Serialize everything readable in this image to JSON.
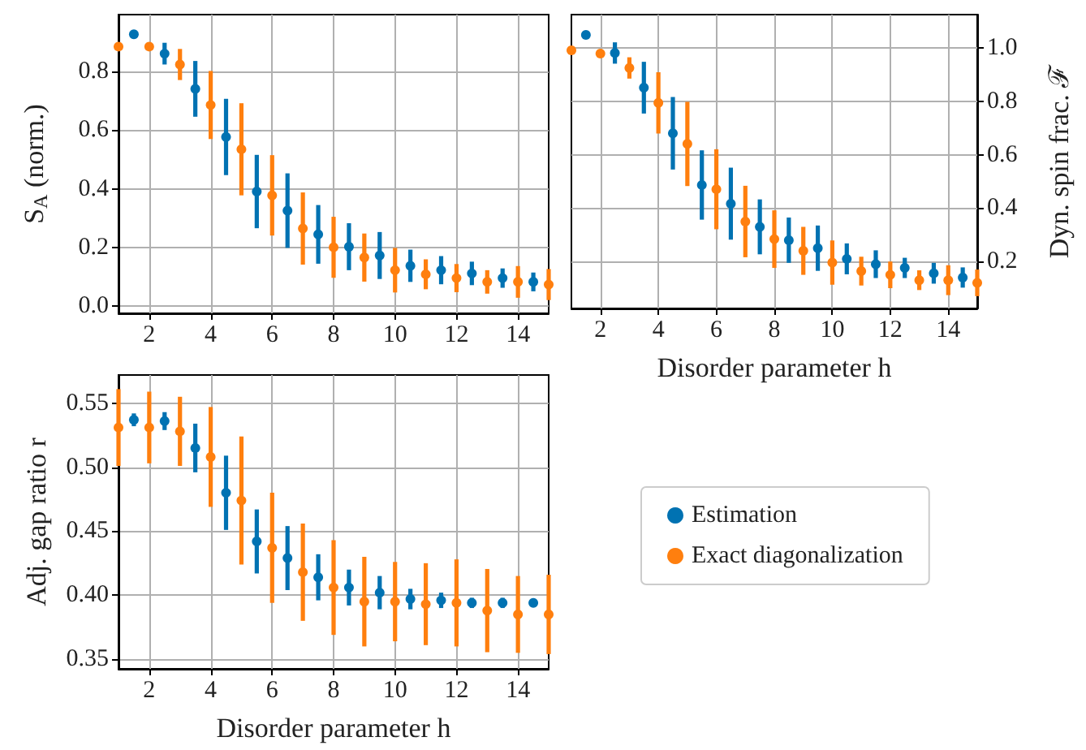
{
  "chart_data": [
    {
      "type": "scatter",
      "ylabel": "S$_{A}$ (norm.)",
      "xlim": [
        1,
        15
      ],
      "xticks": [
        2,
        4,
        6,
        8,
        10,
        12,
        14
      ],
      "ylim": [
        -0.024,
        0.994
      ],
      "yticks": [
        {
          "value": 0,
          "label": "0.0"
        },
        0.2,
        0.4,
        0.6,
        0.8
      ],
      "grid": true,
      "marker": "circle",
      "series": [
        {
          "color": "#0072b2",
          "x": [
            1.5,
            2.5,
            3.5,
            4.5,
            5.5,
            6.5,
            7.5,
            8.5,
            9.5,
            10.5,
            11.5,
            12.5,
            13.5,
            14.5
          ],
          "values": [
            0.927,
            0.861,
            0.741,
            0.577,
            0.391,
            0.326,
            0.245,
            0.203,
            0.173,
            0.138,
            0.123,
            0.112,
            0.096,
            0.083
          ],
          "errors": [
            null,
            0.037,
            0.095,
            0.13,
            0.125,
            0.127,
            0.1,
            0.08,
            0.08,
            0.055,
            0.048,
            0.04,
            0.033,
            0.032
          ]
        },
        {
          "color": "#ff7f0e",
          "x": [
            1,
            2,
            3,
            4,
            5,
            6,
            7,
            8,
            9,
            10,
            11,
            12,
            13,
            14,
            15
          ],
          "values": [
            0.885,
            0.885,
            0.824,
            0.686,
            0.535,
            0.378,
            0.265,
            0.201,
            0.166,
            0.123,
            0.109,
            0.096,
            0.083,
            0.083,
            0.074
          ],
          "errors": [
            null,
            null,
            0.053,
            0.116,
            0.157,
            0.137,
            0.123,
            0.104,
            0.082,
            0.076,
            0.051,
            0.048,
            0.04,
            0.054,
            0.053
          ]
        }
      ]
    },
    {
      "type": "scatter",
      "xlabel": "Disorder parameter h",
      "y2label": "Dyn. spin frac. ℱ",
      "xlim": [
        1,
        15
      ],
      "xticks": [
        2,
        4,
        6,
        8,
        10,
        12,
        14
      ],
      "y2lim": [
        0.024,
        1.126
      ],
      "y2ticks": [
        0.2,
        0.4,
        0.6,
        0.8,
        {
          "value": 1,
          "label": "1.0"
        }
      ],
      "grid": true,
      "marker": "circle",
      "series": [
        {
          "color": "#0072b2",
          "axis": "y2",
          "x": [
            1.5,
            2.5,
            3.5,
            4.5,
            5.5,
            6.5,
            7.5,
            8.5,
            9.5,
            10.5,
            11.5,
            12.5,
            13.5,
            14.5
          ],
          "values": [
            1.05,
            0.982,
            0.852,
            0.681,
            0.487,
            0.417,
            0.33,
            0.28,
            0.25,
            0.21,
            0.19,
            0.176,
            0.156,
            0.14
          ],
          "errors": [
            null,
            0.04,
            0.097,
            0.136,
            0.13,
            0.135,
            0.103,
            0.085,
            0.085,
            0.058,
            0.052,
            0.038,
            0.039,
            0.038
          ]
        },
        {
          "color": "#ff7f0e",
          "axis": "y2",
          "x": [
            1,
            2,
            3,
            4,
            5,
            6,
            7,
            8,
            9,
            10,
            11,
            12,
            13,
            14,
            15
          ],
          "values": [
            0.992,
            0.98,
            0.926,
            0.795,
            0.641,
            0.471,
            0.35,
            0.284,
            0.24,
            0.196,
            0.164,
            0.15,
            0.13,
            0.13,
            0.12
          ],
          "errors": [
            null,
            null,
            0.04,
            0.115,
            0.158,
            0.15,
            0.134,
            0.108,
            0.09,
            0.083,
            0.054,
            0.05,
            0.037,
            0.056,
            0.05
          ]
        }
      ]
    },
    {
      "type": "scatter",
      "xlabel": "Disorder parameter h",
      "ylabel": "Adj. gap ratio r",
      "xlim": [
        1,
        15
      ],
      "xticks": [
        2,
        4,
        6,
        8,
        10,
        12,
        14
      ],
      "ylim": [
        0.3425,
        0.572
      ],
      "yticks": [
        0.35,
        {
          "value": 0.4,
          "label": "0.40"
        },
        0.45,
        {
          "value": 0.5,
          "label": "0.50"
        },
        0.55
      ],
      "grid": true,
      "marker": "circle",
      "legend": "right",
      "series": [
        {
          "name": "Estimation",
          "color": "#0072b2",
          "x": [
            1.5,
            2.5,
            3.5,
            4.5,
            5.5,
            6.5,
            7.5,
            8.5,
            9.5,
            10.5,
            11.5,
            12.5,
            13.5,
            14.5
          ],
          "values": [
            0.537,
            0.536,
            0.515,
            0.48,
            0.442,
            0.429,
            0.414,
            0.406,
            0.402,
            0.397,
            0.396,
            0.394,
            0.394,
            0.394
          ],
          "errors": [
            0.005,
            0.007,
            0.019,
            0.029,
            0.025,
            0.025,
            0.018,
            0.014,
            0.013,
            0.008,
            0.006,
            0.004,
            0.004,
            0.003
          ]
        },
        {
          "name": "Exact diagonalization",
          "color": "#ff7f0e",
          "x": [
            1,
            2,
            3,
            4,
            5,
            6,
            7,
            8,
            9,
            10,
            11,
            12,
            13,
            14,
            15
          ],
          "values": [
            0.531,
            0.531,
            0.528,
            0.508,
            0.474,
            0.437,
            0.418,
            0.406,
            0.395,
            0.395,
            0.393,
            0.394,
            0.388,
            0.385,
            0.385
          ],
          "errors": [
            0.03,
            0.028,
            0.027,
            0.039,
            0.05,
            0.043,
            0.038,
            0.037,
            0.035,
            0.031,
            0.032,
            0.034,
            0.0325,
            0.03,
            0.031
          ]
        }
      ]
    }
  ]
}
